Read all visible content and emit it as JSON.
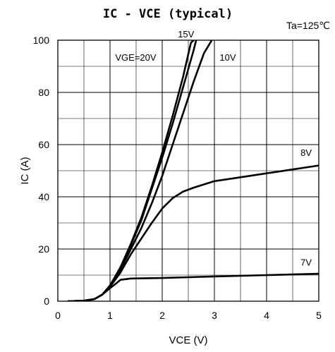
{
  "chart_data": {
    "type": "line",
    "title": "IC - VCE (typical)",
    "annotation": "Ta=125℃",
    "xlabel": "VCE (V)",
    "ylabel": "IC (A)",
    "xlim": [
      0,
      5
    ],
    "ylim": [
      0,
      100
    ],
    "x_ticks": [
      "0",
      "1",
      "2",
      "3",
      "4",
      "5"
    ],
    "y_ticks": [
      "0",
      "20",
      "40",
      "60",
      "80",
      "100"
    ],
    "grid": true,
    "series": [
      {
        "name": "VGE=20V",
        "points": [
          [
            0.2,
            0
          ],
          [
            0.5,
            0.2
          ],
          [
            0.7,
            0.8
          ],
          [
            0.85,
            2.5
          ],
          [
            1.0,
            6
          ],
          [
            1.2,
            13
          ],
          [
            1.4,
            22
          ],
          [
            1.6,
            32
          ],
          [
            1.8,
            44
          ],
          [
            2.0,
            57
          ],
          [
            2.2,
            71
          ],
          [
            2.4,
            86
          ],
          [
            2.55,
            99
          ],
          [
            2.6,
            100
          ]
        ]
      },
      {
        "name": "15V",
        "points": [
          [
            0.2,
            0
          ],
          [
            0.5,
            0.2
          ],
          [
            0.7,
            0.8
          ],
          [
            0.85,
            2.5
          ],
          [
            1.0,
            6
          ],
          [
            1.2,
            12.5
          ],
          [
            1.4,
            21.5
          ],
          [
            1.6,
            31
          ],
          [
            1.8,
            43
          ],
          [
            2.0,
            55
          ],
          [
            2.2,
            68
          ],
          [
            2.4,
            82
          ],
          [
            2.6,
            96
          ],
          [
            2.65,
            100
          ]
        ]
      },
      {
        "name": "10V",
        "points": [
          [
            0.2,
            0
          ],
          [
            0.5,
            0.2
          ],
          [
            0.7,
            0.8
          ],
          [
            0.85,
            2.5
          ],
          [
            1.0,
            6
          ],
          [
            1.2,
            12
          ],
          [
            1.4,
            20
          ],
          [
            1.6,
            28
          ],
          [
            1.8,
            37.5
          ],
          [
            2.0,
            48
          ],
          [
            2.2,
            60
          ],
          [
            2.4,
            72
          ],
          [
            2.6,
            84
          ],
          [
            2.8,
            95
          ],
          [
            2.95,
            100
          ]
        ]
      },
      {
        "name": "8V",
        "points": [
          [
            0.2,
            0
          ],
          [
            0.5,
            0.2
          ],
          [
            0.7,
            0.8
          ],
          [
            0.85,
            2.5
          ],
          [
            1.0,
            5.5
          ],
          [
            1.2,
            11
          ],
          [
            1.4,
            18
          ],
          [
            1.6,
            24
          ],
          [
            1.8,
            30
          ],
          [
            2.0,
            35.5
          ],
          [
            2.2,
            39.5
          ],
          [
            2.4,
            42
          ],
          [
            2.6,
            43.5
          ],
          [
            3.0,
            46
          ],
          [
            3.5,
            47.5
          ],
          [
            4.0,
            49
          ],
          [
            4.5,
            50.5
          ],
          [
            5.0,
            52
          ]
        ]
      },
      {
        "name": "7V",
        "points": [
          [
            0.2,
            0
          ],
          [
            0.5,
            0.2
          ],
          [
            0.7,
            0.8
          ],
          [
            0.85,
            2.5
          ],
          [
            1.0,
            5
          ],
          [
            1.1,
            6.5
          ],
          [
            1.2,
            8.2
          ],
          [
            1.4,
            8.7
          ],
          [
            2.0,
            8.9
          ],
          [
            3.0,
            9.5
          ],
          [
            4.0,
            10
          ],
          [
            5.0,
            10.5
          ]
        ]
      }
    ],
    "series_labels": [
      {
        "text": "VGE=20V",
        "at": [
          1.1,
          93.5
        ]
      },
      {
        "text": "15V",
        "at": [
          2.3,
          102.5
        ]
      },
      {
        "text": "10V",
        "at": [
          3.1,
          93.5
        ]
      },
      {
        "text": "8V",
        "at": [
          4.65,
          57
        ]
      },
      {
        "text": "7V",
        "at": [
          4.65,
          15
        ]
      }
    ]
  }
}
